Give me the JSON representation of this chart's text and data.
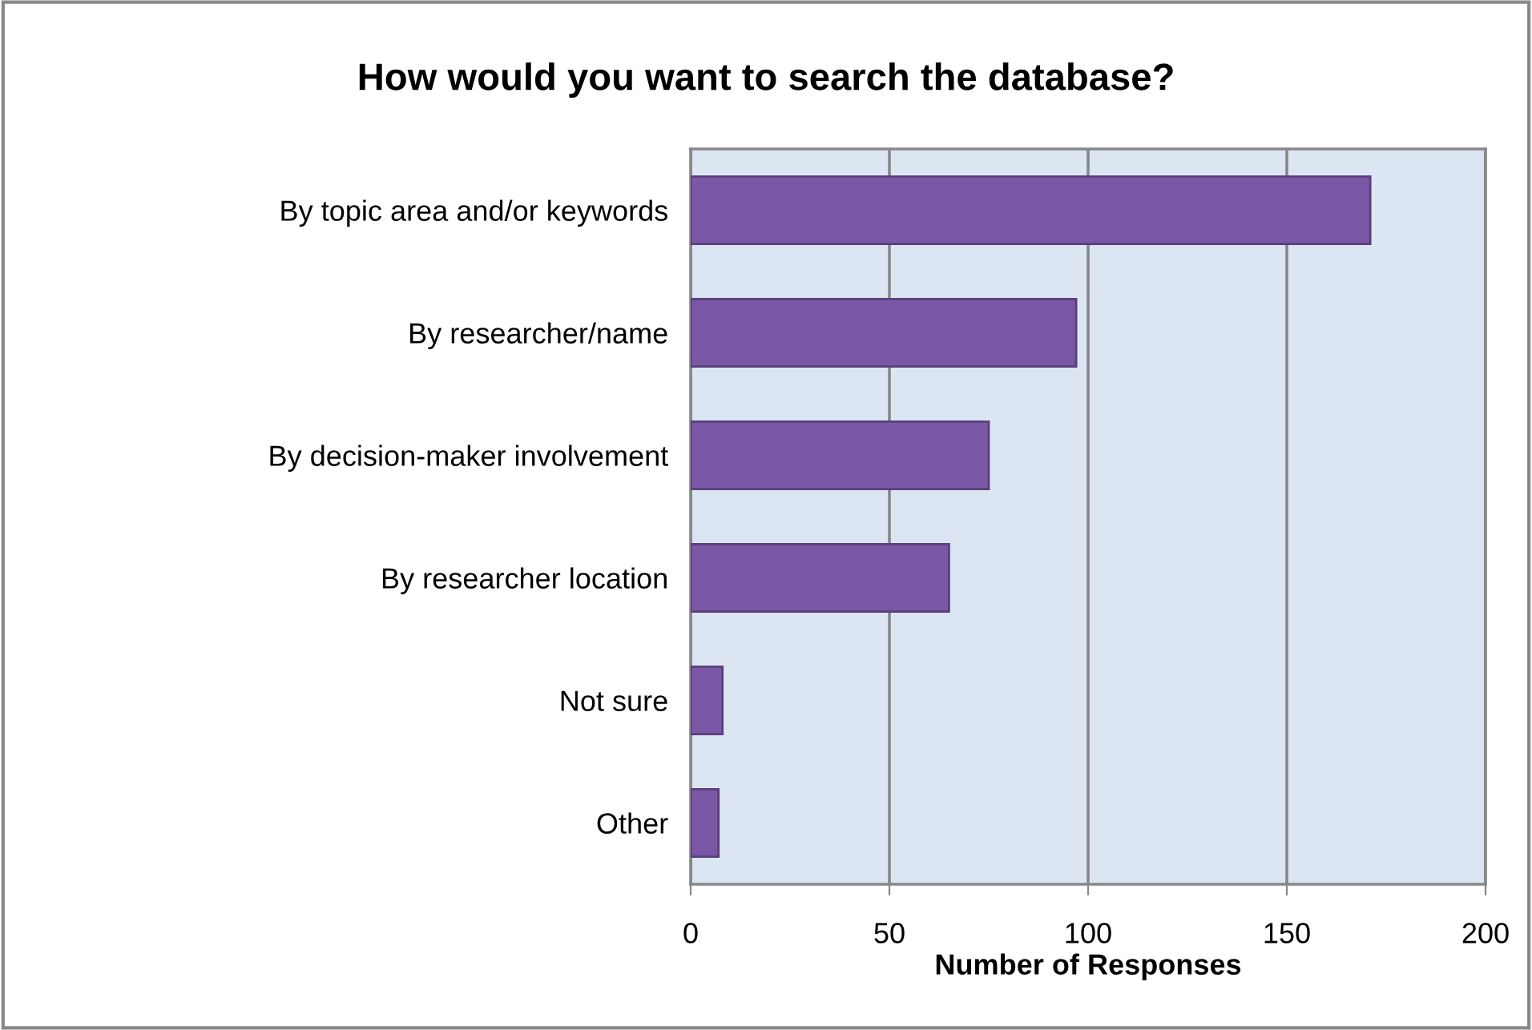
{
  "chart_data": {
    "type": "bar",
    "orientation": "horizontal",
    "title": "How would you want to search the database?",
    "xlabel": "Number of Responses",
    "categories": [
      "By topic area and/or keywords",
      "By researcher/name",
      "By decision-maker involvement",
      "By researcher location",
      "Not sure",
      "Other"
    ],
    "values": [
      171,
      97,
      75,
      65,
      8,
      7
    ],
    "color": "#7b58a6",
    "xlim": [
      0,
      200
    ],
    "xticks": [
      0,
      50,
      100,
      150,
      200
    ],
    "grid": "x",
    "legend": false
  }
}
